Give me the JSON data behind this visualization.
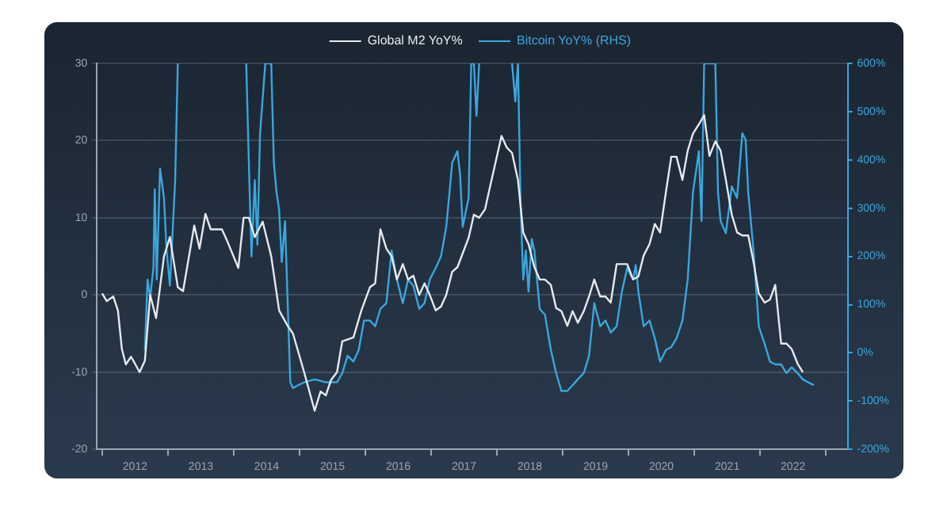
{
  "chart_data": {
    "type": "line",
    "xlim": [
      2011.92,
      2023.33
    ],
    "xticks": [
      {
        "value": 2012,
        "label": null
      },
      {
        "value": 2012.5,
        "label": "2012"
      },
      {
        "value": 2013,
        "label": null
      },
      {
        "value": 2013.5,
        "label": "2013"
      },
      {
        "value": 2014,
        "label": null
      },
      {
        "value": 2014.5,
        "label": "2014"
      },
      {
        "value": 2015,
        "label": null
      },
      {
        "value": 2015.5,
        "label": "2015"
      },
      {
        "value": 2016,
        "label": null
      },
      {
        "value": 2016.5,
        "label": "2016"
      },
      {
        "value": 2017,
        "label": null
      },
      {
        "value": 2017.5,
        "label": "2017"
      },
      {
        "value": 2018,
        "label": null
      },
      {
        "value": 2018.5,
        "label": "2018"
      },
      {
        "value": 2019,
        "label": null
      },
      {
        "value": 2019.5,
        "label": "2019"
      },
      {
        "value": 2020,
        "label": null
      },
      {
        "value": 2020.5,
        "label": "2020"
      },
      {
        "value": 2021,
        "label": null
      },
      {
        "value": 2021.5,
        "label": "2021"
      },
      {
        "value": 2022,
        "label": null
      },
      {
        "value": 2022.5,
        "label": "2022"
      },
      {
        "value": 2023,
        "label": null
      }
    ],
    "ylim": [
      -20,
      30
    ],
    "yticks": [
      -20,
      -10,
      0,
      10,
      20,
      30
    ],
    "y2lim": [
      -200,
      600
    ],
    "y2ticks": [
      {
        "value": -200,
        "label": "-200%"
      },
      {
        "value": -100,
        "label": "-100%"
      },
      {
        "value": 0,
        "label": "0%"
      },
      {
        "value": 100,
        "label": "100%"
      },
      {
        "value": 200,
        "label": "200%"
      },
      {
        "value": 300,
        "label": "300%"
      },
      {
        "value": 400,
        "label": "400%"
      },
      {
        "value": 500,
        "label": "500%"
      },
      {
        "value": 600,
        "label": "600%"
      }
    ],
    "grid": "y",
    "legend": "top",
    "marker": "none",
    "line_style": "solid",
    "series": [
      {
        "name": "Global M2 YoY%",
        "color": "#e6e9ee",
        "x": [
          2012.0,
          2012.07,
          2012.17,
          2012.24,
          2012.3,
          2012.36,
          2012.44,
          2012.57,
          2012.65,
          2012.73,
          2012.82,
          2012.94,
          2013.03,
          2013.15,
          2013.23,
          2013.4,
          2013.48,
          2013.57,
          2013.65,
          2013.82,
          2013.9,
          2014.07,
          2014.15,
          2014.23,
          2014.32,
          2014.44,
          2014.57,
          2014.69,
          2014.82,
          2014.9,
          2015.07,
          2015.23,
          2015.32,
          2015.4,
          2015.48,
          2015.57,
          2015.65,
          2015.82,
          2015.94,
          2016.07,
          2016.15,
          2016.23,
          2016.32,
          2016.4,
          2016.48,
          2016.57,
          2016.65,
          2016.73,
          2016.82,
          2016.9,
          2016.98,
          2017.07,
          2017.15,
          2017.23,
          2017.32,
          2017.4,
          2017.57,
          2017.65,
          2017.73,
          2017.82,
          2017.9,
          2017.98,
          2018.07,
          2018.15,
          2018.23,
          2018.32,
          2018.4,
          2018.48,
          2018.57,
          2018.65,
          2018.73,
          2018.82,
          2018.9,
          2018.98,
          2019.07,
          2019.15,
          2019.23,
          2019.32,
          2019.4,
          2019.48,
          2019.57,
          2019.65,
          2019.73,
          2019.82,
          2019.9,
          2019.98,
          2020.07,
          2020.15,
          2020.23,
          2020.32,
          2020.4,
          2020.48,
          2020.57,
          2020.65,
          2020.73,
          2020.82,
          2020.9,
          2020.98,
          2021.07,
          2021.15,
          2021.23,
          2021.32,
          2021.4,
          2021.48,
          2021.57,
          2021.65,
          2021.73,
          2021.82,
          2021.9,
          2021.98,
          2022.07,
          2022.15,
          2022.23,
          2022.32,
          2022.4,
          2022.48,
          2022.57,
          2022.65
        ],
        "values": [
          0.2,
          -0.8,
          -0.2,
          -2,
          -7,
          -9,
          -8,
          -10,
          -8.5,
          0,
          -3,
          5,
          7.5,
          1,
          0.5,
          9,
          6,
          10.5,
          8.5,
          8.5,
          7,
          3.5,
          10,
          10,
          7.5,
          9.5,
          5,
          -2,
          -4,
          -5,
          -10,
          -15,
          -12.5,
          -13,
          -11,
          -10,
          -6,
          -5.5,
          -2,
          1,
          1.5,
          8.5,
          6,
          5,
          2,
          4,
          2,
          2.5,
          0,
          1.5,
          0,
          -2,
          -1.5,
          0,
          3,
          3.6,
          7.4,
          10.4,
          10,
          11.1,
          14.2,
          17.2,
          20.6,
          19.1,
          18.4,
          14.9,
          8.1,
          6.6,
          3.6,
          2,
          2,
          1.3,
          -1.7,
          -2.1,
          -4,
          -2.1,
          -3.6,
          -2.1,
          -0.2,
          2,
          -0.2,
          -0.2,
          -1,
          4,
          4,
          4,
          2,
          2.4,
          5.1,
          6.6,
          9.2,
          8.1,
          13.4,
          17.9,
          17.9,
          14.9,
          18.7,
          20.9,
          22.1,
          23.3,
          18,
          19.9,
          18.7,
          14.9,
          10.4,
          8.1,
          7.7,
          7.7,
          4.3,
          0.2,
          -1,
          -0.6,
          1.3,
          -6.3,
          -6.3,
          -7,
          -8.9,
          -10
        ]
      },
      {
        "name": "Bitcoin YoY% (RHS)",
        "color": "#3aa6dd",
        "axis": "y2",
        "x": [
          2012.65,
          2012.69,
          2012.73,
          2012.78,
          2012.8,
          2012.83,
          2012.88,
          2012.94,
          2012.98,
          2013.03,
          2013.07,
          2013.11,
          2013.15,
          2013.6,
          2014.19,
          2014.23,
          2014.27,
          2014.32,
          2014.36,
          2014.4,
          2014.48,
          2014.57,
          2014.61,
          2014.65,
          2014.69,
          2014.73,
          2014.78,
          2014.82,
          2014.86,
          2014.9,
          2014.98,
          2015.07,
          2015.23,
          2015.4,
          2015.57,
          2015.65,
          2015.73,
          2015.82,
          2015.9,
          2015.98,
          2016.07,
          2016.15,
          2016.23,
          2016.32,
          2016.4,
          2016.48,
          2016.57,
          2016.65,
          2016.73,
          2016.82,
          2016.9,
          2016.98,
          2017.07,
          2017.15,
          2017.23,
          2017.28,
          2017.32,
          2017.4,
          2017.44,
          2017.48,
          2017.57,
          2017.61,
          2017.65,
          2017.69,
          2017.73,
          2018.0,
          2018.23,
          2018.28,
          2018.32,
          2018.36,
          2018.4,
          2018.44,
          2018.48,
          2018.53,
          2018.57,
          2018.65,
          2018.73,
          2018.82,
          2018.9,
          2018.98,
          2019.07,
          2019.15,
          2019.23,
          2019.32,
          2019.4,
          2019.48,
          2019.57,
          2019.65,
          2019.73,
          2019.82,
          2019.9,
          2019.98,
          2020.07,
          2020.11,
          2020.15,
          2020.23,
          2020.32,
          2020.4,
          2020.48,
          2020.57,
          2020.65,
          2020.73,
          2020.82,
          2020.9,
          2020.98,
          2021.07,
          2021.11,
          2021.15,
          2021.23,
          2021.32,
          2021.36,
          2021.4,
          2021.48,
          2021.57,
          2021.65,
          2021.73,
          2021.78,
          2021.82,
          2021.9,
          2021.98,
          2022.07,
          2022.15,
          2022.23,
          2022.32,
          2022.4,
          2022.48,
          2022.57,
          2022.65,
          2022.73,
          2022.82
        ],
        "values": [
          6,
          152,
          115,
          176,
          339,
          152,
          382,
          321,
          212,
          139,
          248,
          358,
          600,
          null,
          600,
          394,
          200,
          358,
          224,
          455,
          600,
          600,
          394,
          333,
          297,
          188,
          273,
          103,
          -61,
          -73,
          -67,
          -61,
          -55,
          -61,
          -61,
          -42,
          -6,
          -18,
          6,
          67,
          67,
          55,
          91,
          103,
          212,
          152,
          103,
          152,
          139,
          91,
          103,
          152,
          176,
          200,
          261,
          333,
          394,
          418,
          370,
          261,
          321,
          600,
          600,
          491,
          600,
          null,
          600,
          521,
          600,
          309,
          152,
          212,
          127,
          236,
          212,
          91,
          79,
          6,
          -42,
          -79,
          -79,
          -67,
          -55,
          -42,
          -6,
          103,
          55,
          67,
          42,
          55,
          127,
          176,
          152,
          182,
          127,
          55,
          67,
          30,
          -18,
          6,
          12,
          30,
          67,
          152,
          333,
          418,
          273,
          600,
          600,
          600,
          333,
          273,
          248,
          345,
          321,
          455,
          442,
          333,
          212,
          55,
          18,
          -18,
          -24,
          -24,
          -42,
          -30,
          -42,
          -55,
          -61,
          -67
        ]
      }
    ]
  }
}
